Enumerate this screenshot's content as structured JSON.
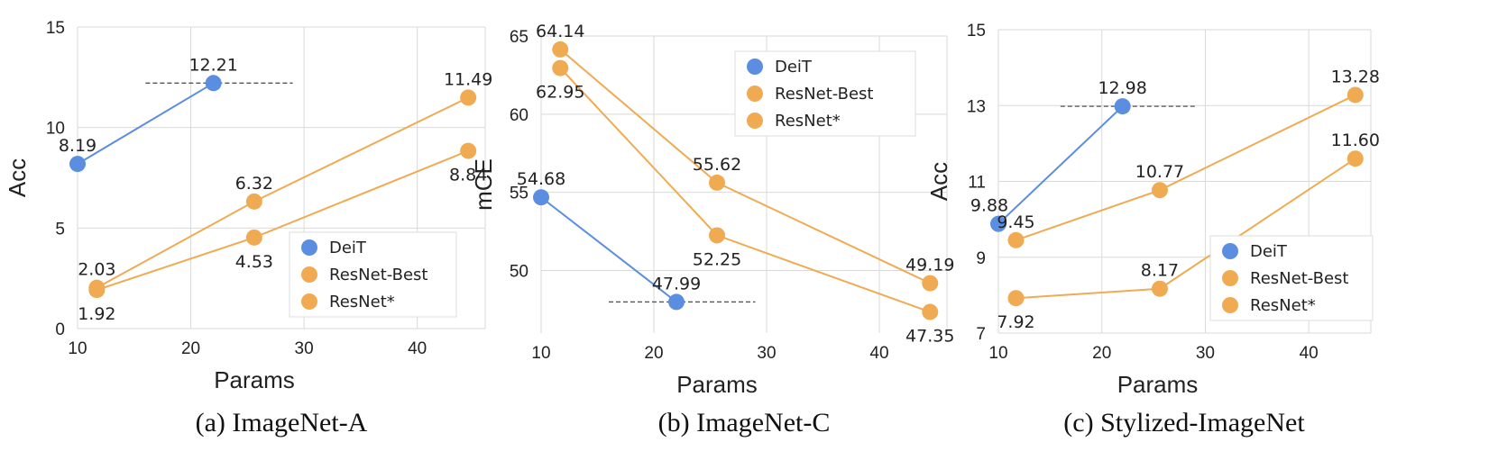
{
  "colors": {
    "deit": "#5b8ee0",
    "resnet": "#f0ab52",
    "grid": "#d9d9d9",
    "dashed": "#555555"
  },
  "chart_data": [
    {
      "type": "line",
      "caption": "(a) ImageNet-A",
      "xlabel": "Params",
      "ylabel": "Acc",
      "xlim": [
        10,
        46
      ],
      "ylim": [
        0,
        15
      ],
      "xticks": [
        10,
        20,
        30,
        40
      ],
      "yticks": [
        0,
        5,
        10,
        15
      ],
      "grid": true,
      "legend_position": "bottom-right",
      "reference_line": {
        "y": 12.21,
        "x": [
          16,
          29
        ]
      },
      "series": [
        {
          "name": "DeiT",
          "color_key": "deit",
          "points": [
            {
              "x": 10,
              "y": 8.19,
              "label": "8.19",
              "pos": "above"
            },
            {
              "x": 22,
              "y": 12.21,
              "label": "12.21",
              "pos": "above"
            }
          ]
        },
        {
          "name": "ResNet-Best",
          "color_key": "resnet",
          "points": [
            {
              "x": 11.7,
              "y": 2.03,
              "label": "2.03",
              "pos": "above"
            },
            {
              "x": 25.6,
              "y": 6.32,
              "label": "6.32",
              "pos": "above"
            },
            {
              "x": 44.5,
              "y": 11.49,
              "label": "11.49",
              "pos": "above"
            }
          ]
        },
        {
          "name": "ResNet*",
          "color_key": "resnet",
          "points": [
            {
              "x": 11.7,
              "y": 1.92,
              "label": "1.92",
              "pos": "below"
            },
            {
              "x": 25.6,
              "y": 4.53,
              "label": "4.53",
              "pos": "below"
            },
            {
              "x": 44.5,
              "y": 8.84,
              "label": "8.84",
              "pos": "below"
            }
          ]
        }
      ]
    },
    {
      "type": "line",
      "caption": "(b) ImageNet-C",
      "xlabel": "Params",
      "ylabel": "mCE",
      "xlim": [
        10,
        46
      ],
      "ylim": [
        46,
        65
      ],
      "xticks": [
        10,
        20,
        30,
        40
      ],
      "yticks": [
        50,
        55,
        60,
        65
      ],
      "grid": true,
      "legend_position": "top-right",
      "reference_line": {
        "y": 47.99,
        "x": [
          16,
          29
        ]
      },
      "series": [
        {
          "name": "DeiT",
          "color_key": "deit",
          "points": [
            {
              "x": 10,
              "y": 54.68,
              "label": "54.68",
              "pos": "above"
            },
            {
              "x": 22,
              "y": 47.99,
              "label": "47.99",
              "pos": "above"
            }
          ]
        },
        {
          "name": "ResNet-Best",
          "color_key": "resnet",
          "points": [
            {
              "x": 11.7,
              "y": 64.14,
              "label": "64.14",
              "pos": "above"
            },
            {
              "x": 25.6,
              "y": 55.62,
              "label": "55.62",
              "pos": "above"
            },
            {
              "x": 44.5,
              "y": 49.19,
              "label": "49.19",
              "pos": "above"
            }
          ]
        },
        {
          "name": "ResNet*",
          "color_key": "resnet",
          "points": [
            {
              "x": 11.7,
              "y": 62.95,
              "label": "62.95",
              "pos": "below"
            },
            {
              "x": 25.6,
              "y": 52.25,
              "label": "52.25",
              "pos": "below"
            },
            {
              "x": 44.5,
              "y": 47.35,
              "label": "47.35",
              "pos": "below"
            }
          ]
        }
      ]
    },
    {
      "type": "line",
      "caption": "(c) Stylized-ImageNet",
      "xlabel": "Params",
      "ylabel": "Acc",
      "xlim": [
        10,
        46
      ],
      "ylim": [
        7,
        15
      ],
      "xticks": [
        10,
        20,
        30,
        40
      ],
      "yticks": [
        7,
        9,
        11,
        13,
        15
      ],
      "grid": true,
      "legend_position": "bottom-right",
      "reference_line": {
        "y": 12.98,
        "x": [
          16,
          29
        ]
      },
      "series": [
        {
          "name": "DeiT",
          "color_key": "deit",
          "points": [
            {
              "x": 10,
              "y": 9.88,
              "label": "9.88",
              "pos": "above-left"
            },
            {
              "x": 22,
              "y": 12.98,
              "label": "12.98",
              "pos": "above"
            }
          ]
        },
        {
          "name": "ResNet-Best",
          "color_key": "resnet",
          "points": [
            {
              "x": 11.7,
              "y": 9.45,
              "label": "9.45",
              "pos": "above"
            },
            {
              "x": 25.6,
              "y": 10.77,
              "label": "10.77",
              "pos": "above"
            },
            {
              "x": 44.5,
              "y": 13.28,
              "label": "13.28",
              "pos": "above"
            }
          ]
        },
        {
          "name": "ResNet*",
          "color_key": "resnet",
          "points": [
            {
              "x": 11.7,
              "y": 7.92,
              "label": "7.92",
              "pos": "below"
            },
            {
              "x": 25.6,
              "y": 8.17,
              "label": "8.17",
              "pos": "above"
            },
            {
              "x": 44.5,
              "y": 11.6,
              "label": "11.60",
              "pos": "above"
            }
          ]
        }
      ]
    }
  ]
}
